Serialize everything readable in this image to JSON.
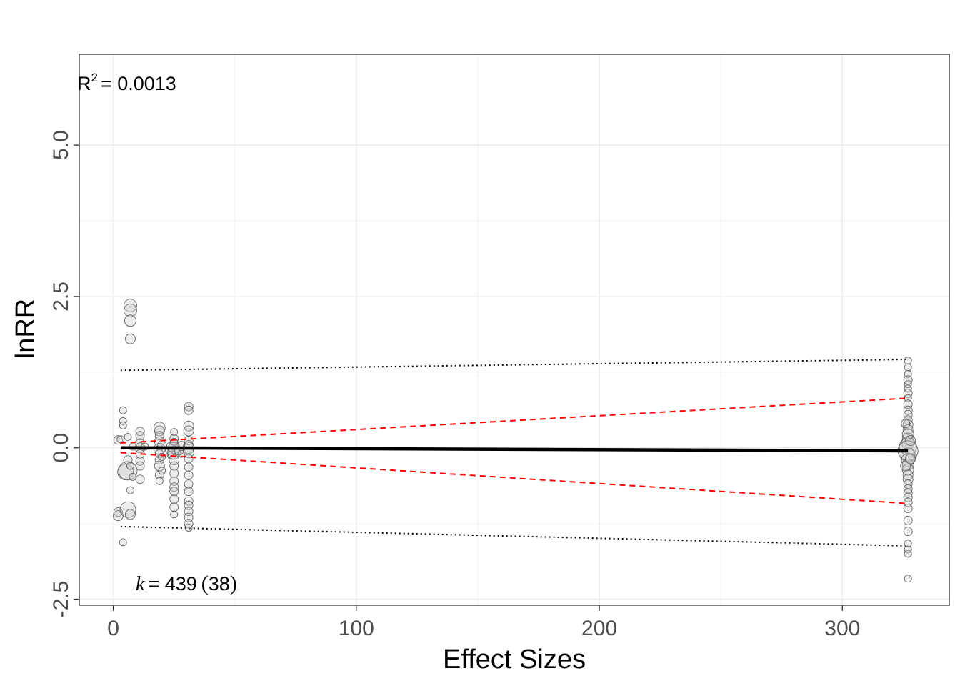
{
  "chart_data": {
    "type": "scatter",
    "title": "",
    "xlabel": "Effect Sizes",
    "ylabel": "lnRR",
    "xlim": [
      -14,
      344
    ],
    "ylim": [
      -2.6,
      6.5
    ],
    "x_ticks": [
      0,
      100,
      200,
      300
    ],
    "x_tick_labels": [
      "0",
      "100",
      "200",
      "300"
    ],
    "y_ticks": [
      -2.5,
      0,
      2.5,
      5
    ],
    "y_tick_labels": [
      "-2.5",
      "0.0",
      "2.5",
      "5.0"
    ],
    "grid": true,
    "annotations": {
      "r2_label": "R",
      "r2_sup": "2",
      "r2_value": "= 0.0013",
      "k_label": "k",
      "k_value": "= 439",
      "k_open": "(",
      "k_studies": "38",
      "k_close": ")"
    },
    "fit_line": {
      "x": [
        3,
        327
      ],
      "y": [
        0.0,
        -0.05
      ],
      "color": "#000000"
    },
    "ci_lower": {
      "x": [
        3,
        327
      ],
      "y": [
        -0.08,
        -0.92
      ],
      "color": "#ff0000"
    },
    "ci_upper": {
      "x": [
        3,
        327
      ],
      "y": [
        0.08,
        0.82
      ],
      "color": "#ff0000"
    },
    "pi_lower": {
      "x": [
        3,
        327
      ],
      "y": [
        -1.3,
        -1.62
      ],
      "color": "#000000"
    },
    "pi_upper": {
      "x": [
        3,
        327
      ],
      "y": [
        1.28,
        1.46
      ],
      "color": "#000000"
    },
    "points": [
      {
        "x": 2,
        "y": 0.13,
        "size": 6
      },
      {
        "x": 2,
        "y": -1.06,
        "size": 6
      },
      {
        "x": 2,
        "y": -1.12,
        "size": 7
      },
      {
        "x": 3,
        "y": 0.14,
        "size": 5
      },
      {
        "x": 4,
        "y": 0.62,
        "size": 5
      },
      {
        "x": 4,
        "y": 0.44,
        "size": 5
      },
      {
        "x": 4,
        "y": 0.37,
        "size": 5
      },
      {
        "x": 4,
        "y": -1.56,
        "size": 5
      },
      {
        "x": 5,
        "y": -0.4,
        "size": 11
      },
      {
        "x": 6,
        "y": -0.38,
        "size": 13
      },
      {
        "x": 6,
        "y": -0.2,
        "size": 6
      },
      {
        "x": 6,
        "y": -1.02,
        "size": 11
      },
      {
        "x": 6,
        "y": 0.18,
        "size": 5
      },
      {
        "x": 7,
        "y": -0.3,
        "size": 5
      },
      {
        "x": 7,
        "y": -1.1,
        "size": 7
      },
      {
        "x": 7,
        "y": 2.35,
        "size": 9
      },
      {
        "x": 7,
        "y": 2.27,
        "size": 9
      },
      {
        "x": 7,
        "y": 2.1,
        "size": 8
      },
      {
        "x": 7,
        "y": 1.8,
        "size": 7
      },
      {
        "x": 7,
        "y": -0.7,
        "size": 5
      },
      {
        "x": 8,
        "y": 0.02,
        "size": 5
      },
      {
        "x": 8,
        "y": -0.48,
        "size": 5
      },
      {
        "x": 11,
        "y": 0.27,
        "size": 6
      },
      {
        "x": 11,
        "y": 0.2,
        "size": 6
      },
      {
        "x": 11,
        "y": 0.08,
        "size": 6
      },
      {
        "x": 11,
        "y": 0.0,
        "size": 7
      },
      {
        "x": 11,
        "y": -0.1,
        "size": 6
      },
      {
        "x": 11,
        "y": -0.22,
        "size": 6
      },
      {
        "x": 11,
        "y": -0.3,
        "size": 6
      },
      {
        "x": 11,
        "y": -0.52,
        "size": 6
      },
      {
        "x": 13,
        "y": 0.02,
        "size": 5
      },
      {
        "x": 19,
        "y": 0.33,
        "size": 8
      },
      {
        "x": 19,
        "y": 0.28,
        "size": 7
      },
      {
        "x": 19,
        "y": 0.2,
        "size": 6
      },
      {
        "x": 19,
        "y": 0.1,
        "size": 7
      },
      {
        "x": 19,
        "y": -0.02,
        "size": 8
      },
      {
        "x": 19,
        "y": -0.1,
        "size": 6
      },
      {
        "x": 19,
        "y": -0.2,
        "size": 6
      },
      {
        "x": 19,
        "y": -0.3,
        "size": 7
      },
      {
        "x": 19,
        "y": -0.45,
        "size": 6
      },
      {
        "x": 19,
        "y": -0.55,
        "size": 5
      },
      {
        "x": 20,
        "y": 0.05,
        "size": 6
      },
      {
        "x": 20,
        "y": -0.15,
        "size": 5
      },
      {
        "x": 20,
        "y": -0.38,
        "size": 5
      },
      {
        "x": 23,
        "y": -0.05,
        "size": 5
      },
      {
        "x": 24,
        "y": 0.02,
        "size": 7
      },
      {
        "x": 24,
        "y": -0.12,
        "size": 6
      },
      {
        "x": 25,
        "y": 0.26,
        "size": 5
      },
      {
        "x": 25,
        "y": 0.15,
        "size": 6
      },
      {
        "x": 25,
        "y": 0.05,
        "size": 7
      },
      {
        "x": 25,
        "y": 0.0,
        "size": 8
      },
      {
        "x": 25,
        "y": -0.08,
        "size": 9
      },
      {
        "x": 25,
        "y": -0.2,
        "size": 7
      },
      {
        "x": 25,
        "y": -0.3,
        "size": 6
      },
      {
        "x": 25,
        "y": -0.42,
        "size": 6
      },
      {
        "x": 25,
        "y": -0.55,
        "size": 6
      },
      {
        "x": 25,
        "y": -0.65,
        "size": 6
      },
      {
        "x": 25,
        "y": -0.72,
        "size": 6
      },
      {
        "x": 25,
        "y": -0.85,
        "size": 6
      },
      {
        "x": 25,
        "y": -0.98,
        "size": 6
      },
      {
        "x": 25,
        "y": -1.1,
        "size": 5
      },
      {
        "x": 25,
        "y": 0.1,
        "size": 5
      },
      {
        "x": 27,
        "y": -0.05,
        "size": 6
      },
      {
        "x": 28,
        "y": 0.05,
        "size": 5
      },
      {
        "x": 28,
        "y": -0.1,
        "size": 5
      },
      {
        "x": 31,
        "y": 0.68,
        "size": 6
      },
      {
        "x": 31,
        "y": 0.62,
        "size": 6
      },
      {
        "x": 31,
        "y": 0.36,
        "size": 7
      },
      {
        "x": 31,
        "y": 0.28,
        "size": 7
      },
      {
        "x": 31,
        "y": 0.12,
        "size": 6
      },
      {
        "x": 31,
        "y": 0.0,
        "size": 8
      },
      {
        "x": 31,
        "y": -0.08,
        "size": 7
      },
      {
        "x": 31,
        "y": -0.18,
        "size": 6
      },
      {
        "x": 31,
        "y": -0.32,
        "size": 6
      },
      {
        "x": 31,
        "y": -0.45,
        "size": 6
      },
      {
        "x": 31,
        "y": -0.6,
        "size": 6
      },
      {
        "x": 31,
        "y": -0.72,
        "size": 6
      },
      {
        "x": 31,
        "y": -0.88,
        "size": 6
      },
      {
        "x": 31,
        "y": -0.95,
        "size": 6
      },
      {
        "x": 31,
        "y": -1.05,
        "size": 6
      },
      {
        "x": 31,
        "y": -1.15,
        "size": 6
      },
      {
        "x": 31,
        "y": -1.25,
        "size": 6
      },
      {
        "x": 31,
        "y": -1.32,
        "size": 5
      },
      {
        "x": 31,
        "y": 0.05,
        "size": 6
      },
      {
        "x": 327,
        "y": 1.44,
        "size": 5
      },
      {
        "x": 327,
        "y": 1.33,
        "size": 5
      },
      {
        "x": 327,
        "y": 1.22,
        "size": 5
      },
      {
        "x": 327,
        "y": 1.12,
        "size": 6
      },
      {
        "x": 327,
        "y": 1.05,
        "size": 5
      },
      {
        "x": 327,
        "y": 0.98,
        "size": 5
      },
      {
        "x": 327,
        "y": 0.9,
        "size": 6
      },
      {
        "x": 327,
        "y": 0.82,
        "size": 5
      },
      {
        "x": 327,
        "y": 0.72,
        "size": 6
      },
      {
        "x": 327,
        "y": 0.62,
        "size": 6
      },
      {
        "x": 327,
        "y": 0.55,
        "size": 6
      },
      {
        "x": 327,
        "y": 0.46,
        "size": 6
      },
      {
        "x": 327,
        "y": 0.38,
        "size": 7
      },
      {
        "x": 327,
        "y": 0.3,
        "size": 7
      },
      {
        "x": 327,
        "y": 0.22,
        "size": 8
      },
      {
        "x": 327,
        "y": 0.15,
        "size": 8
      },
      {
        "x": 327,
        "y": 0.08,
        "size": 9
      },
      {
        "x": 327,
        "y": 0.02,
        "size": 12
      },
      {
        "x": 327,
        "y": -0.05,
        "size": 14
      },
      {
        "x": 327,
        "y": -0.12,
        "size": 10
      },
      {
        "x": 327,
        "y": -0.2,
        "size": 9
      },
      {
        "x": 327,
        "y": -0.28,
        "size": 8
      },
      {
        "x": 327,
        "y": -0.36,
        "size": 8
      },
      {
        "x": 327,
        "y": -0.45,
        "size": 7
      },
      {
        "x": 327,
        "y": -0.52,
        "size": 7
      },
      {
        "x": 327,
        "y": -0.6,
        "size": 6
      },
      {
        "x": 327,
        "y": -0.68,
        "size": 6
      },
      {
        "x": 327,
        "y": -0.75,
        "size": 6
      },
      {
        "x": 327,
        "y": -0.82,
        "size": 6
      },
      {
        "x": 327,
        "y": -0.9,
        "size": 6
      },
      {
        "x": 327,
        "y": -1.0,
        "size": 6
      },
      {
        "x": 327,
        "y": -1.2,
        "size": 6
      },
      {
        "x": 327,
        "y": -1.38,
        "size": 6
      },
      {
        "x": 327,
        "y": -1.58,
        "size": 5
      },
      {
        "x": 327,
        "y": -1.68,
        "size": 5
      },
      {
        "x": 327,
        "y": -1.75,
        "size": 5
      },
      {
        "x": 327,
        "y": -2.16,
        "size": 5
      },
      {
        "x": 326,
        "y": 0.4,
        "size": 6
      },
      {
        "x": 326,
        "y": -0.3,
        "size": 7
      },
      {
        "x": 328,
        "y": 0.12,
        "size": 7
      },
      {
        "x": 328,
        "y": -0.18,
        "size": 7
      }
    ]
  }
}
